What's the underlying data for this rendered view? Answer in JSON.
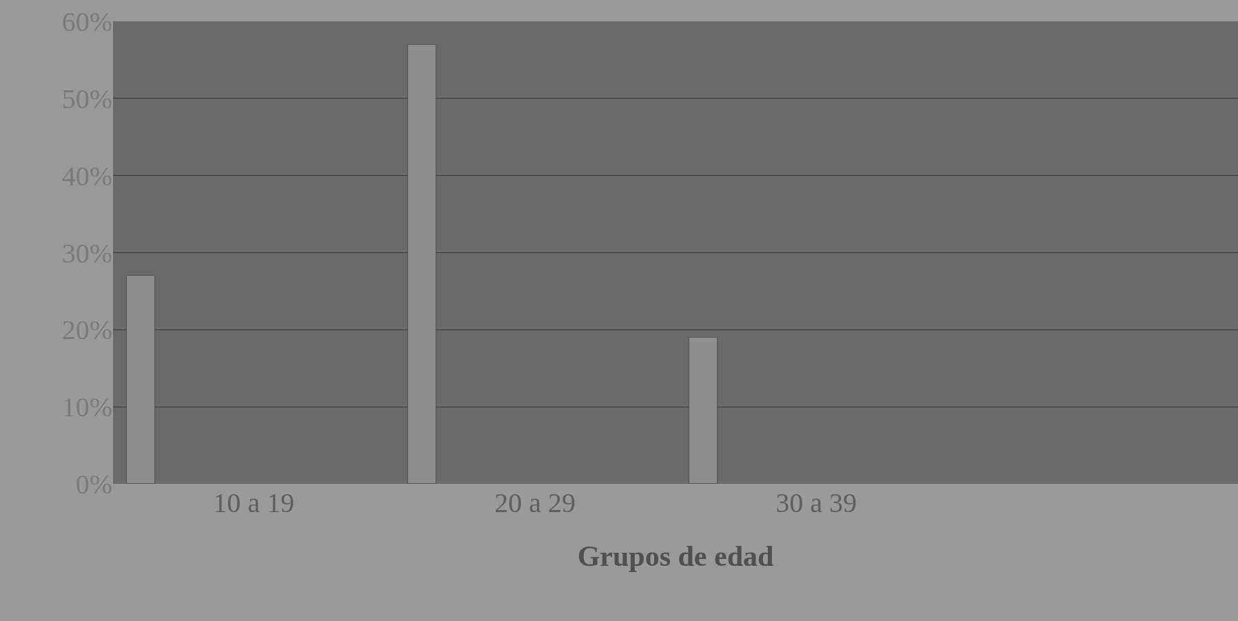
{
  "chart_data": {
    "type": "bar",
    "xlabel": "Grupos de edad",
    "categories": [
      "10 a 19",
      "20 a 29",
      "30 a 39",
      null
    ],
    "values": [
      27,
      57,
      19,
      null
    ],
    "color": "#8f8f8f",
    "ylim": [
      0,
      60
    ],
    "yticks": [
      {
        "value": 0,
        "label": "0%"
      },
      {
        "value": 10,
        "label": "10%"
      },
      {
        "value": 20,
        "label": "20%"
      },
      {
        "value": 30,
        "label": "30%"
      },
      {
        "value": 40,
        "label": "40%"
      },
      {
        "value": 50,
        "label": "50%"
      },
      {
        "value": 60,
        "label": "60%"
      }
    ],
    "grid": "y"
  }
}
